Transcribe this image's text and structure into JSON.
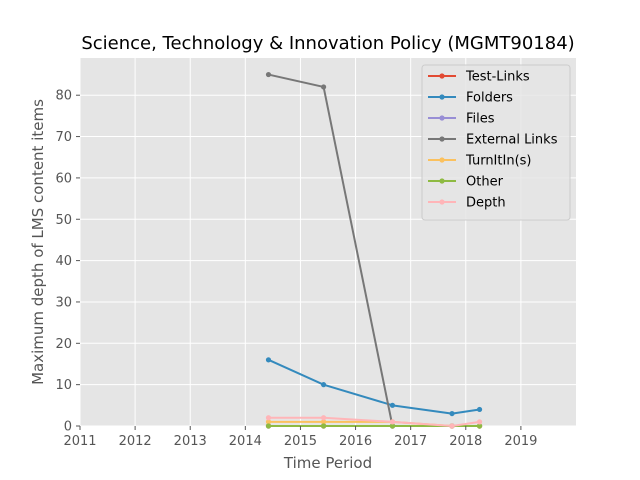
{
  "chart_data": {
    "type": "line",
    "title": "Science, Technology & Innovation Policy (MGMT90184)",
    "xlabel": "Time Period",
    "ylabel": "Maximum depth of LMS content items",
    "xlim": [
      2011,
      2020
    ],
    "ylim": [
      0,
      89
    ],
    "x_ticks": [
      "2011",
      "2012",
      "2013",
      "2014",
      "2015",
      "2016",
      "2017",
      "2018",
      "2019"
    ],
    "y_ticks": [
      "0",
      "10",
      "20",
      "30",
      "40",
      "50",
      "60",
      "70",
      "80"
    ],
    "grid": true,
    "legend_position": "top-right",
    "series": [
      {
        "name": "Test-Links",
        "color": "#e24a33",
        "x": [
          2014.42,
          2015.42,
          2016.67,
          2017.75,
          2018.25
        ],
        "values": [
          0,
          0,
          0,
          0,
          0
        ]
      },
      {
        "name": "Folders",
        "color": "#348abd",
        "x": [
          2014.42,
          2015.42,
          2016.67,
          2017.75,
          2018.25
        ],
        "values": [
          16,
          10,
          5,
          3,
          4
        ]
      },
      {
        "name": "Files",
        "color": "#988ed5",
        "x": [
          2014.42,
          2015.42,
          2016.67,
          2017.75,
          2018.25
        ],
        "values": [
          0,
          0,
          0,
          0,
          0
        ]
      },
      {
        "name": "External Links",
        "color": "#777777",
        "x": [
          2014.42,
          2015.42,
          2016.67,
          2017.75,
          2018.25
        ],
        "values": [
          85,
          82,
          0,
          0,
          0
        ]
      },
      {
        "name": "TurnItIn(s)",
        "color": "#fbc15e",
        "x": [
          2014.42,
          2015.42,
          2016.67,
          2017.75,
          2018.25
        ],
        "values": [
          1,
          1,
          1,
          0,
          0
        ]
      },
      {
        "name": "Other",
        "color": "#8eba42",
        "x": [
          2014.42,
          2015.42,
          2016.67,
          2017.75,
          2018.25
        ],
        "values": [
          0,
          0,
          0,
          0,
          0
        ]
      },
      {
        "name": "Depth",
        "color": "#ffb5b8",
        "x": [
          2014.42,
          2015.42,
          2016.67,
          2017.75,
          2018.25
        ],
        "values": [
          2,
          2,
          1,
          0,
          1
        ]
      }
    ]
  }
}
